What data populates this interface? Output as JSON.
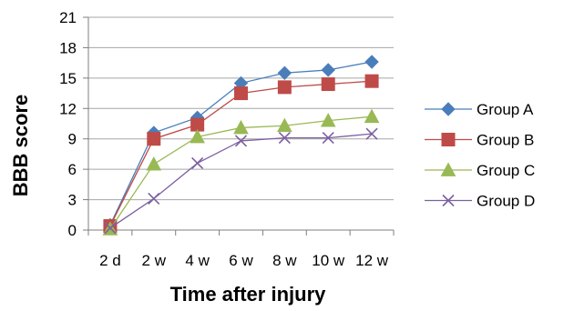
{
  "chart_data": {
    "type": "line",
    "title": "",
    "xlabel": "Time after injury",
    "ylabel": "BBB score",
    "categories": [
      "2 d",
      "2 w",
      "4 w",
      "6 w",
      "8 w",
      "10 w",
      "12 w"
    ],
    "ylim": [
      0,
      21
    ],
    "yticks": [
      "0",
      "3",
      "6",
      "9",
      "12",
      "15",
      "18",
      "21"
    ],
    "grid": true,
    "legend_position": "right",
    "series": [
      {
        "name": "Group A",
        "values": [
          0.5,
          9.6,
          11.1,
          14.5,
          15.5,
          15.8,
          16.6
        ],
        "color": "#4a7ebb",
        "marker": "diamond"
      },
      {
        "name": "Group B",
        "values": [
          0.4,
          9.0,
          10.4,
          13.5,
          14.1,
          14.4,
          14.7
        ],
        "color": "#be4b48",
        "marker": "square"
      },
      {
        "name": "Group C",
        "values": [
          0.1,
          6.5,
          9.2,
          10.1,
          10.3,
          10.8,
          11.2
        ],
        "color": "#98b954",
        "marker": "triangle"
      },
      {
        "name": "Group D",
        "values": [
          0.2,
          3.1,
          6.6,
          8.8,
          9.1,
          9.1,
          9.5
        ],
        "color": "#7d60a0",
        "marker": "x"
      }
    ]
  }
}
